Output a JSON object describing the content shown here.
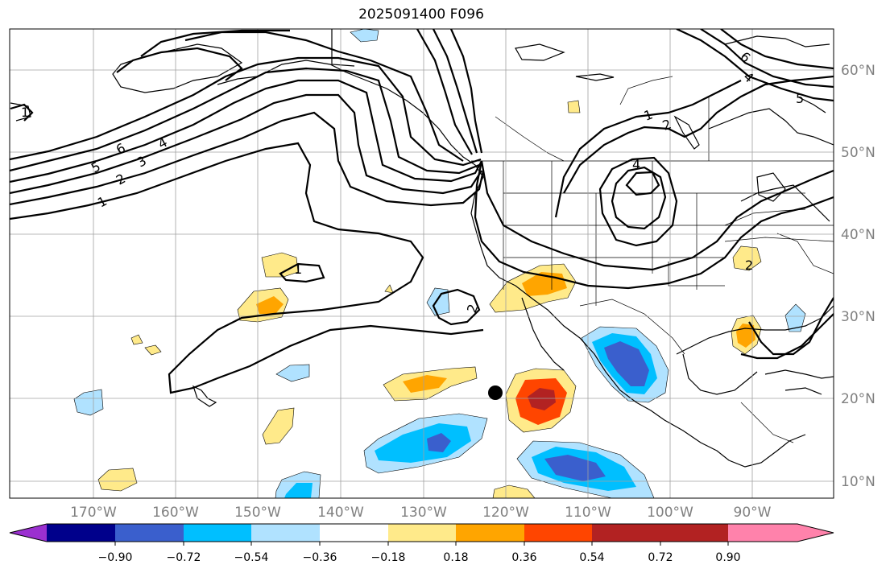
{
  "title": "2025091400 F096",
  "map": {
    "lon_labels": [
      "170°W",
      "160°W",
      "150°W",
      "140°W",
      "130°W",
      "120°W",
      "110°W",
      "100°W",
      "90°W"
    ],
    "lat_labels": [
      "60°N",
      "50°N",
      "40°N",
      "30°N",
      "20°N",
      "10°N"
    ],
    "contour_labels": [
      "1",
      "2",
      "3",
      "4",
      "5",
      "6",
      "1",
      "2",
      "1",
      "2",
      "4",
      "5",
      "6",
      "4",
      "1",
      "2"
    ],
    "marker": "storm-center-dot"
  },
  "colorbar": {
    "labels": [
      "−0.90",
      "−0.72",
      "−0.54",
      "−0.36",
      "−0.18",
      "0.18",
      "0.36",
      "0.54",
      "0.72",
      "0.90"
    ],
    "colors": [
      "#9b30d0",
      "#00008b",
      "#3a5fcd",
      "#00bfff",
      "#b0e2ff",
      "#ffffff",
      "#ffea8a",
      "#ffa500",
      "#ff4500",
      "#b22222",
      "#ff82ab"
    ]
  }
}
